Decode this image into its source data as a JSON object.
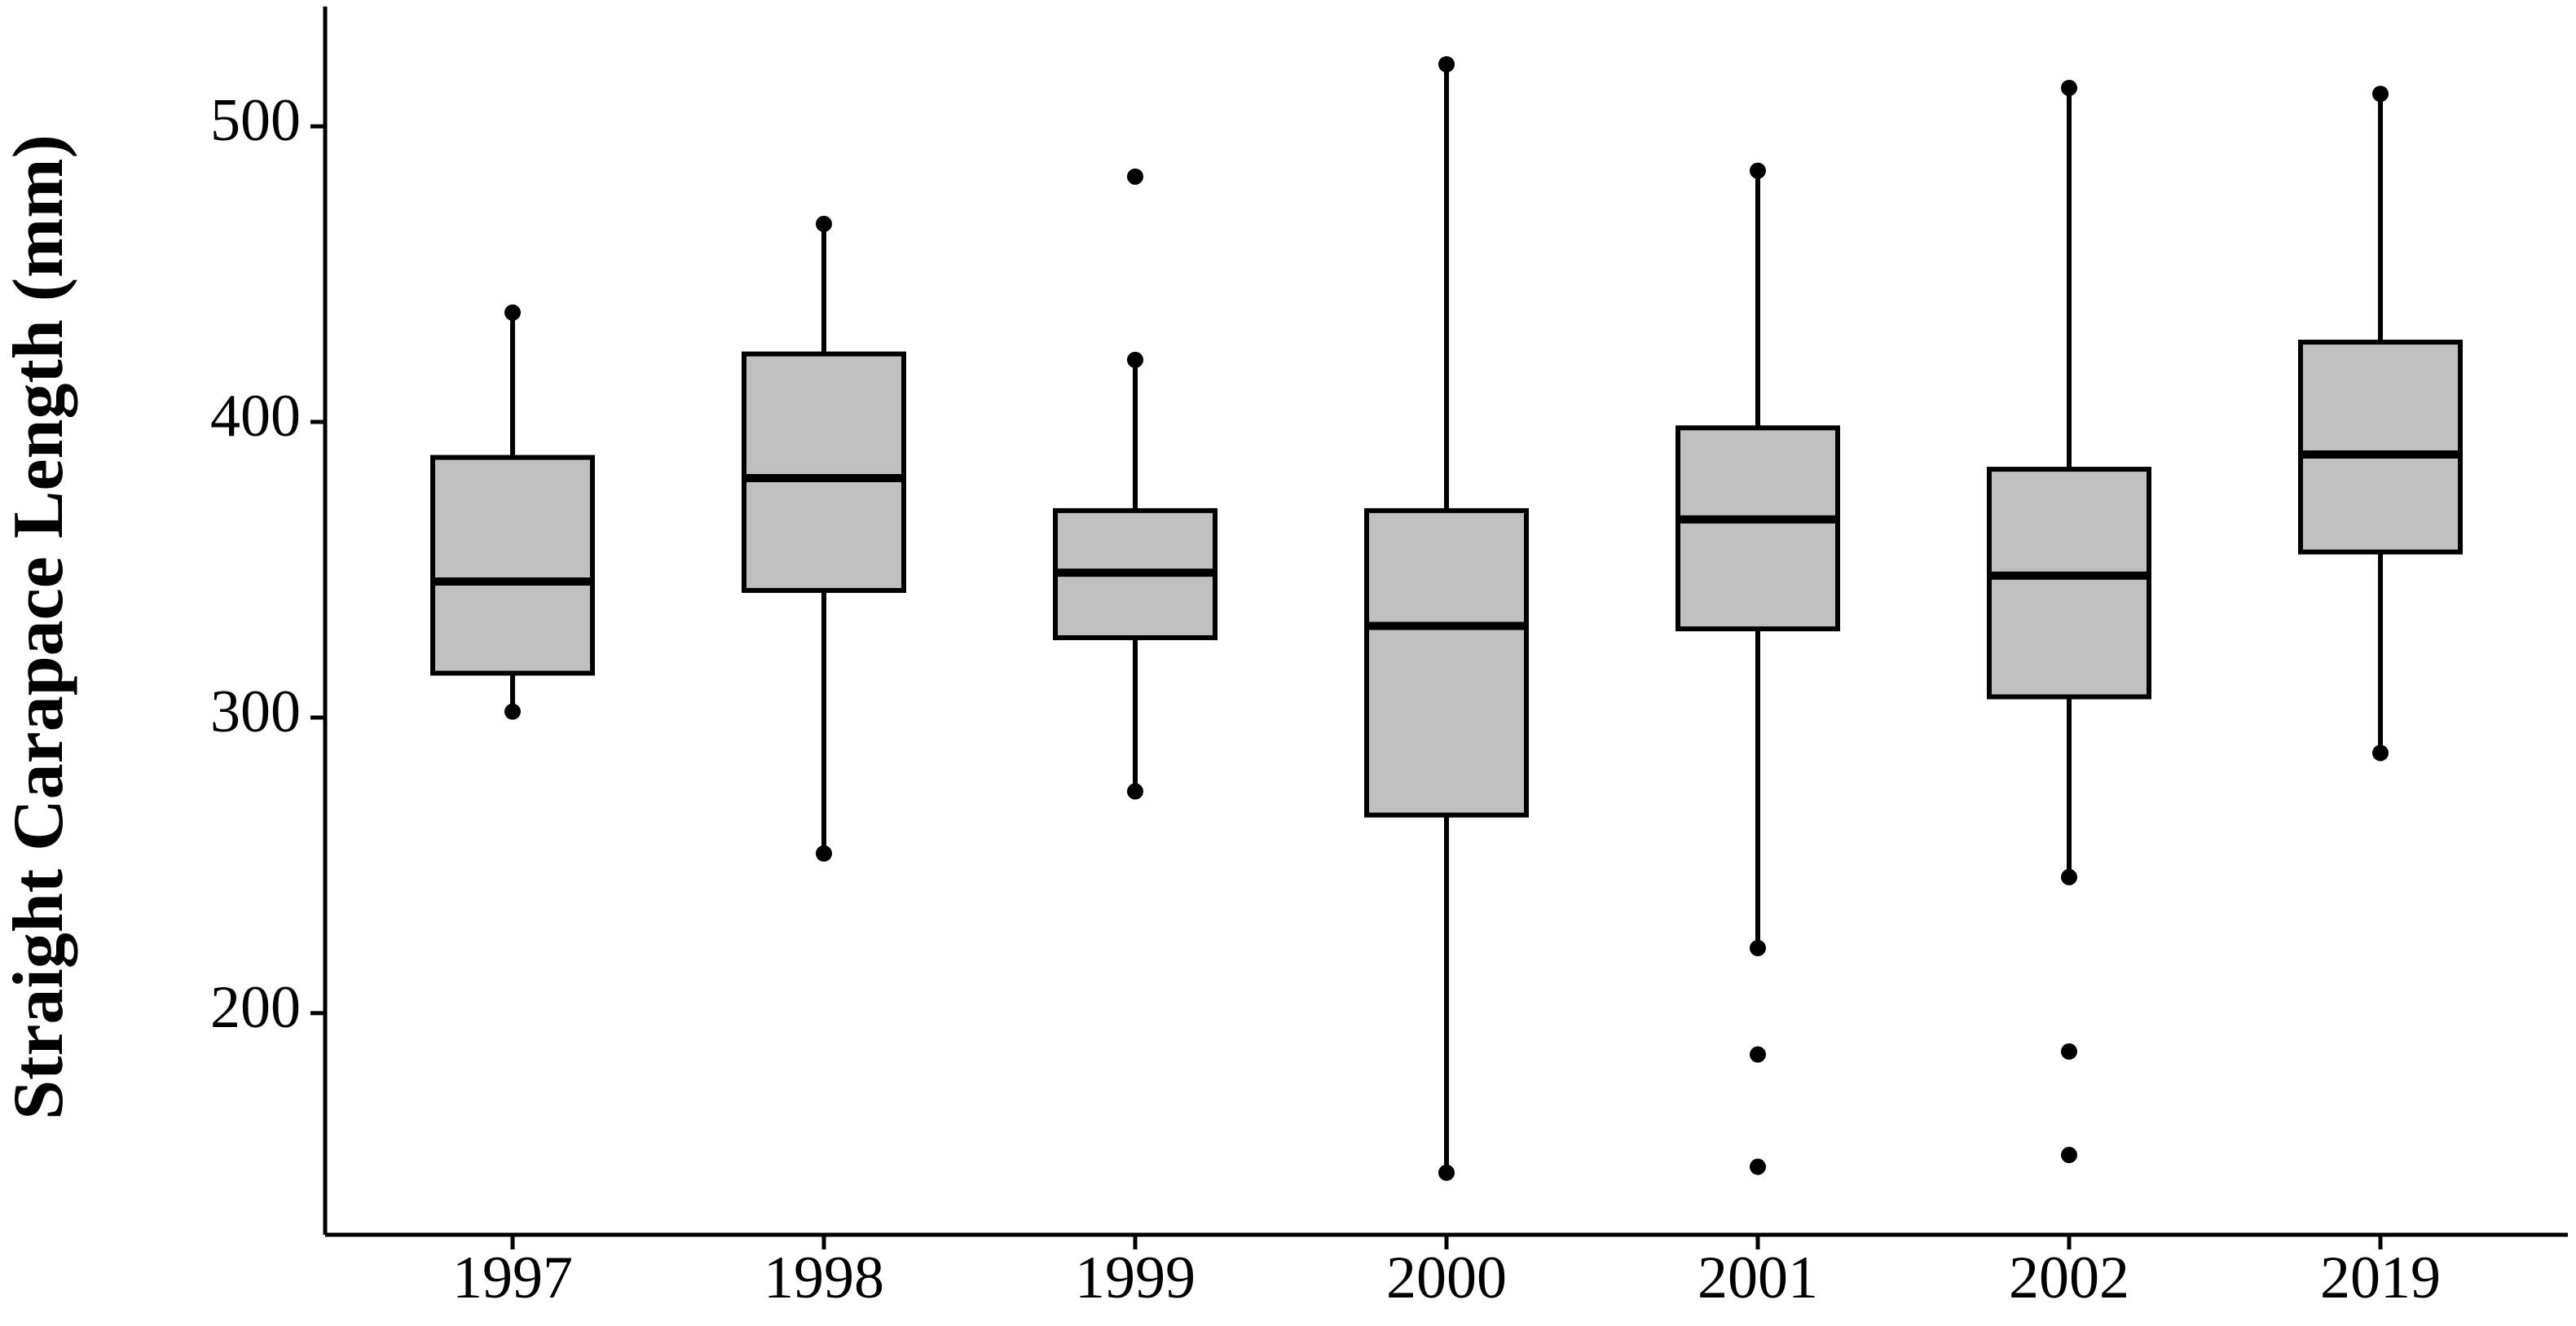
{
  "chart_data": {
    "type": "box",
    "y_label": "Straight Carapace Length (mm)",
    "categories": [
      "1997",
      "1998",
      "1999",
      "2000",
      "2001",
      "2002",
      "2019"
    ],
    "boxes": [
      {
        "whisker_low": 302,
        "q1": 315,
        "median": 346,
        "q3": 388,
        "whisker_high": 437,
        "outliers": []
      },
      {
        "whisker_low": 254,
        "q1": 343,
        "median": 381,
        "q3": 423,
        "whisker_high": 467,
        "outliers": []
      },
      {
        "whisker_low": 275,
        "q1": 327,
        "median": 349,
        "q3": 370,
        "whisker_high": 421,
        "outliers": [
          483
        ]
      },
      {
        "whisker_low": 146,
        "q1": 267,
        "median": 331,
        "q3": 370,
        "whisker_high": 521,
        "outliers": []
      },
      {
        "whisker_low": 222,
        "q1": 330,
        "median": 367,
        "q3": 398,
        "whisker_high": 485,
        "outliers": [
          186,
          148
        ]
      },
      {
        "whisker_low": 246,
        "q1": 307,
        "median": 348,
        "q3": 384,
        "whisker_high": 513,
        "outliers": [
          187,
          152
        ]
      },
      {
        "whisker_low": 288,
        "q1": 356,
        "median": 389,
        "q3": 427,
        "whisker_high": 511,
        "outliers": []
      }
    ],
    "box_color": "#c0c0c0",
    "point_color": "#000000",
    "ylim": [
      125,
      540
    ],
    "yticks": [
      200,
      300,
      400,
      500
    ],
    "grid": false
  }
}
